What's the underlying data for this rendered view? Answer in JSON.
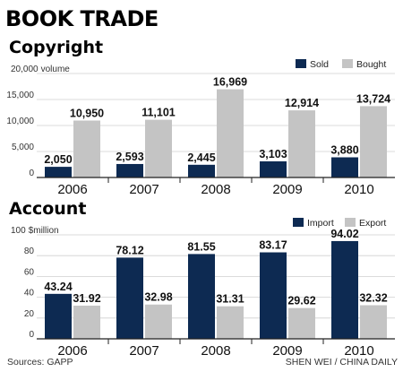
{
  "title": "BOOK TRADE",
  "source": "Sources: GAPP",
  "credit": "SHEN WEI / CHINA DAILY",
  "colors": {
    "primary": "#0d2a52",
    "secondary": "#c4c4c4",
    "grid": "#cfcfcf",
    "axis": "#222222"
  },
  "chart_data": [
    {
      "type": "bar",
      "title": "Copyright",
      "ylabel": "volume",
      "ytick_labels": [
        "0",
        "5,000",
        "10,000",
        "15,000",
        "20,000"
      ],
      "ylim": [
        0,
        20000
      ],
      "grid": true,
      "legend_position": "top-right",
      "categories": [
        "2006",
        "2007",
        "2008",
        "2009",
        "2010"
      ],
      "series": [
        {
          "name": "Sold",
          "values": [
            2050,
            2593,
            2445,
            3103,
            3880
          ],
          "labels": [
            "2,050",
            "2,593",
            "2,445",
            "3,103",
            "3,880"
          ]
        },
        {
          "name": "Bought",
          "values": [
            10950,
            11101,
            16969,
            12914,
            13724
          ],
          "labels": [
            "10,950",
            "11,101",
            "16,969",
            "12,914",
            "13,724"
          ]
        }
      ]
    },
    {
      "type": "bar",
      "title": "Account",
      "ylabel": "$million",
      "ytick_labels": [
        "0",
        "20",
        "40",
        "60",
        "80",
        "100"
      ],
      "ylim": [
        0,
        100
      ],
      "grid": true,
      "legend_position": "top-right",
      "categories": [
        "2006",
        "2007",
        "2008",
        "2009",
        "2010"
      ],
      "series": [
        {
          "name": "Import",
          "values": [
            43.24,
            78.12,
            81.55,
            83.17,
            94.02
          ],
          "labels": [
            "43.24",
            "78.12",
            "81.55",
            "83.17",
            "94.02"
          ]
        },
        {
          "name": "Export",
          "values": [
            31.92,
            32.98,
            31.31,
            29.62,
            32.32
          ],
          "labels": [
            "31.92",
            "32.98",
            "31.31",
            "29.62",
            "32.32"
          ]
        }
      ]
    }
  ]
}
